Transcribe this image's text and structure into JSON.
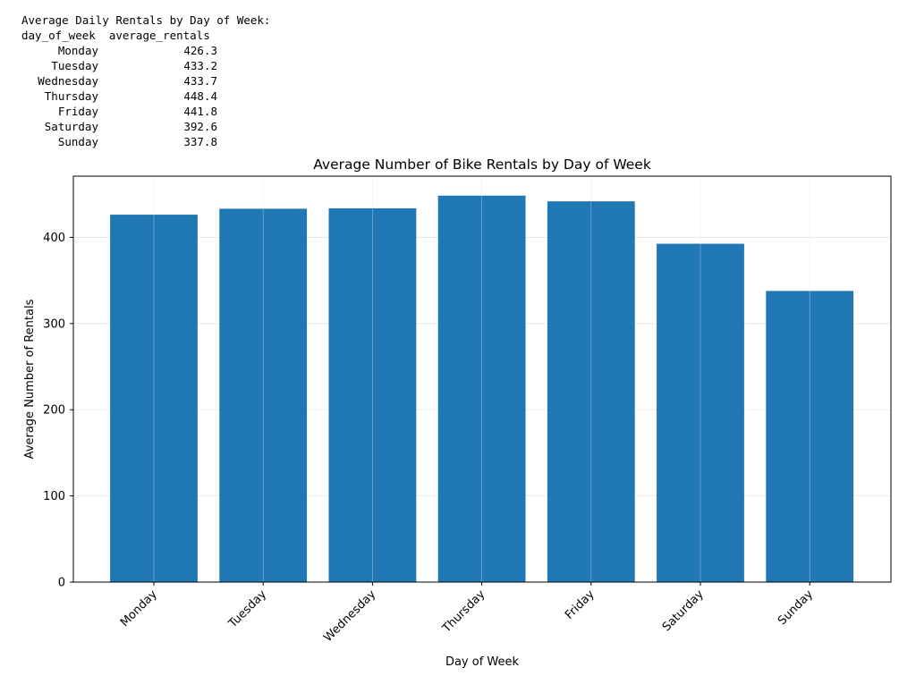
{
  "console": {
    "heading": "Average Daily Rentals by Day of Week:",
    "columns_line": "day_of_week  average_rentals",
    "rows": [
      {
        "day": "Monday",
        "value": "426.3"
      },
      {
        "day": "Tuesday",
        "value": "433.2"
      },
      {
        "day": "Wednesday",
        "value": "433.7"
      },
      {
        "day": "Thursday",
        "value": "448.4"
      },
      {
        "day": "Friday",
        "value": "441.8"
      },
      {
        "day": "Saturday",
        "value": "392.6"
      },
      {
        "day": "Sunday",
        "value": "337.8"
      }
    ]
  },
  "chart_data": {
    "type": "bar",
    "title": "Average Number of Bike Rentals by Day of Week",
    "xlabel": "Day of Week",
    "ylabel": "Average Number of Rentals",
    "categories": [
      "Monday",
      "Tuesday",
      "Wednesday",
      "Thursday",
      "Friday",
      "Saturday",
      "Sunday"
    ],
    "values": [
      426.3,
      433.2,
      433.7,
      448.4,
      441.8,
      392.6,
      337.8
    ],
    "ylim": [
      0,
      471
    ],
    "yticks": [
      0,
      100,
      200,
      300,
      400
    ],
    "grid": true,
    "bar_color": "#1f77b4",
    "grid_color": "#e6e6e6"
  }
}
